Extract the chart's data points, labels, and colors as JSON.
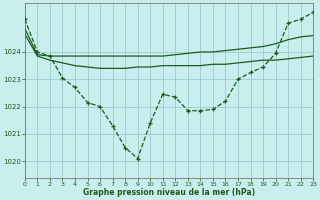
{
  "title": "Graphe pression niveau de la mer (hPa)",
  "background_color": "#c8eeee",
  "grid_color": "#99cccc",
  "line_color": "#1a5c1a",
  "xlim": [
    0,
    23
  ],
  "ylim": [
    1019.4,
    1025.8
  ],
  "yticks": [
    1020,
    1021,
    1022,
    1023,
    1024
  ],
  "xticks": [
    0,
    1,
    2,
    3,
    4,
    5,
    6,
    7,
    8,
    9,
    10,
    11,
    12,
    13,
    14,
    15,
    16,
    17,
    18,
    19,
    20,
    21,
    22,
    23
  ],
  "series1_x": [
    0,
    1,
    2,
    3,
    4,
    5,
    6,
    7,
    8,
    9,
    10,
    11,
    12,
    13,
    14,
    15,
    16,
    17,
    18,
    19,
    20,
    21,
    22,
    23
  ],
  "series1_y": [
    1025.2,
    1024.0,
    1023.85,
    1023.05,
    1022.7,
    1022.15,
    1022.0,
    1021.3,
    1020.5,
    1020.1,
    1021.4,
    1022.45,
    1022.35,
    1021.85,
    1021.85,
    1021.9,
    1022.2,
    1023.0,
    1023.25,
    1023.45,
    1023.95,
    1025.05,
    1025.2,
    1025.45
  ],
  "series2_x": [
    0,
    1,
    2,
    3,
    4,
    5,
    6,
    7,
    8,
    9,
    10,
    11,
    12,
    13,
    14,
    15,
    16,
    17,
    18,
    19,
    20,
    21,
    22,
    23
  ],
  "series2_y": [
    1024.85,
    1023.9,
    1023.85,
    1023.85,
    1023.85,
    1023.85,
    1023.85,
    1023.85,
    1023.85,
    1023.85,
    1023.85,
    1023.85,
    1023.9,
    1023.95,
    1024.0,
    1024.0,
    1024.05,
    1024.1,
    1024.15,
    1024.2,
    1024.3,
    1024.45,
    1024.55,
    1024.6
  ],
  "series3_x": [
    0,
    1,
    2,
    3,
    4,
    5,
    6,
    7,
    8,
    9,
    10,
    11,
    12,
    13,
    14,
    15,
    16,
    17,
    18,
    19,
    20,
    21,
    22,
    23
  ],
  "series3_y": [
    1024.65,
    1023.85,
    1023.7,
    1023.6,
    1023.5,
    1023.45,
    1023.4,
    1023.4,
    1023.4,
    1023.45,
    1023.45,
    1023.5,
    1023.5,
    1023.5,
    1023.5,
    1023.55,
    1023.55,
    1023.6,
    1023.65,
    1023.7,
    1023.7,
    1023.75,
    1023.8,
    1023.85
  ]
}
